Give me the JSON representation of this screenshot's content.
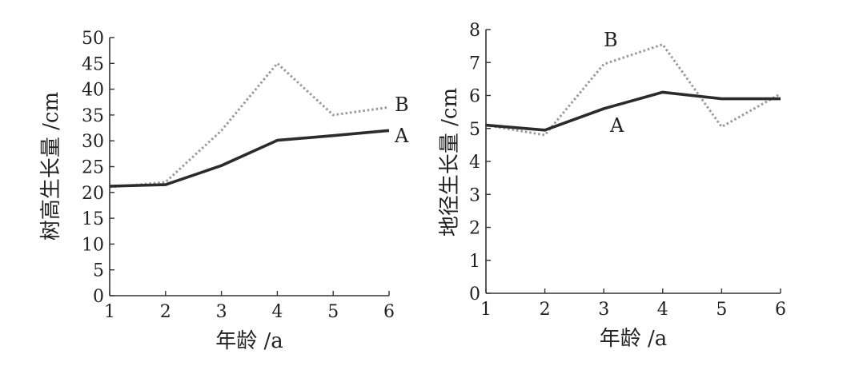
{
  "colors": {
    "series_a": "#2b2b2b",
    "series_b": "#9a9a9a",
    "axis": "#333333"
  },
  "chart_data": [
    {
      "type": "line",
      "xlabel": "年龄 /a",
      "ylabel": "树高生长量 /cm",
      "xlim": [
        1,
        6
      ],
      "ylim": [
        0,
        50
      ],
      "x_ticks": [
        1,
        2,
        3,
        4,
        5,
        6
      ],
      "y_ticks": [
        0,
        5,
        10,
        15,
        20,
        25,
        30,
        35,
        40,
        45,
        50
      ],
      "grid": false,
      "x": [
        1,
        2,
        3,
        4,
        5,
        6
      ],
      "series": [
        {
          "name": "A",
          "style": "solid",
          "values": [
            21.2,
            21.5,
            25.2,
            30.1,
            31.0,
            32.0
          ]
        },
        {
          "name": "B",
          "style": "dotted",
          "values": [
            21.0,
            22.0,
            32.0,
            45.0,
            35.0,
            36.5
          ]
        }
      ]
    },
    {
      "type": "line",
      "xlabel": "年龄 /a",
      "ylabel": "地径生长量 /cm",
      "xlim": [
        1,
        6
      ],
      "ylim": [
        0,
        8
      ],
      "x_ticks": [
        1,
        2,
        3,
        4,
        5,
        6
      ],
      "y_ticks": [
        0,
        1,
        2,
        3,
        4,
        5,
        6,
        7,
        8
      ],
      "grid": false,
      "x": [
        1,
        2,
        3,
        4,
        5,
        6
      ],
      "series": [
        {
          "name": "A",
          "style": "solid",
          "values": [
            5.1,
            4.95,
            5.6,
            6.1,
            5.9,
            5.9
          ]
        },
        {
          "name": "B",
          "style": "dotted",
          "values": [
            5.1,
            4.8,
            6.95,
            7.55,
            5.05,
            6.05
          ]
        }
      ]
    }
  ]
}
